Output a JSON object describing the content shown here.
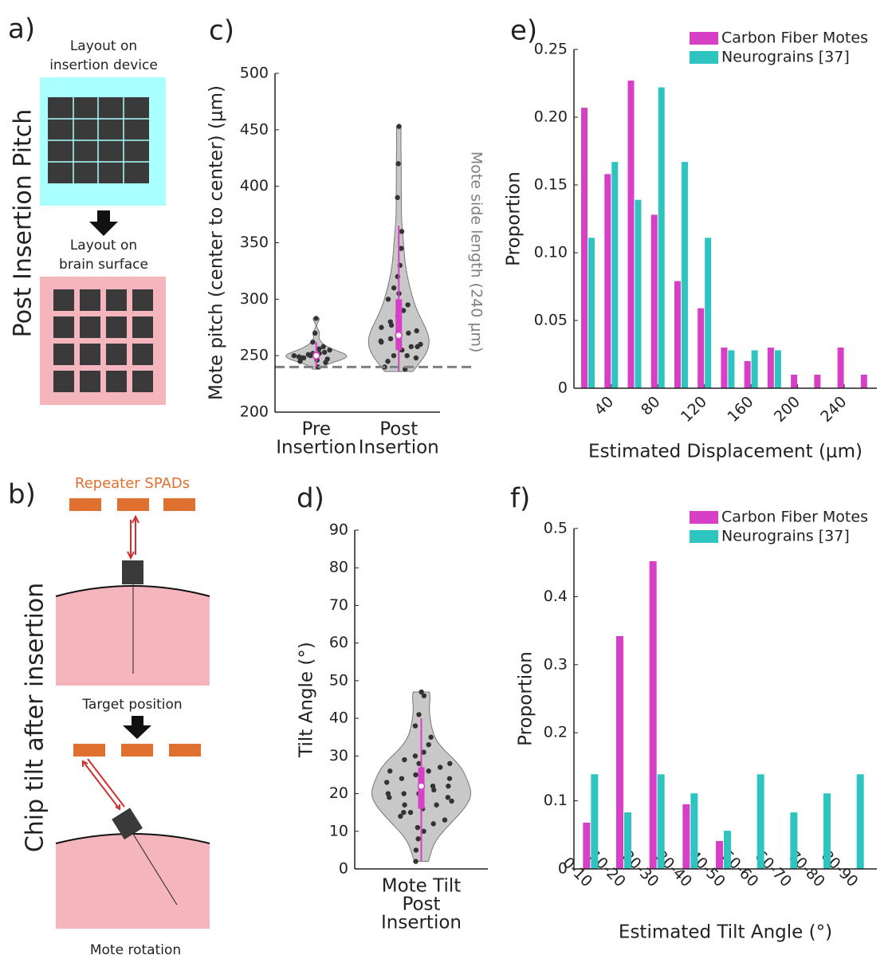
{
  "panels": {
    "a": {
      "label": "a)",
      "title": "Post Insertion Pitch",
      "top_caption": [
        "Layout on",
        "insertion device"
      ],
      "bottom_caption": [
        "Layout on",
        "brain surface"
      ]
    },
    "b": {
      "label": "b)",
      "title": "Chip tilt after insertion",
      "spads": "Repeater SPADs",
      "top_caption": "Target position",
      "bottom_caption": "Mote rotation"
    }
  },
  "chart_data": [
    {
      "type": "violin",
      "panel_label": "c)",
      "ylabel": "Mote pitch (center to center) (μm)",
      "categories": [
        [
          "Pre",
          "Insertion"
        ],
        [
          "Post",
          "Insertion"
        ]
      ],
      "ylim": [
        200,
        500
      ],
      "yticks": [
        200,
        250,
        300,
        350,
        400,
        450,
        500
      ],
      "reference_line": 240,
      "reference_label": "Mote side length (240 μm)",
      "reference_color": "#808080",
      "color": "#c8c8c8",
      "box_color": "#d63fc6",
      "groups": [
        {
          "min": 238,
          "max": 283,
          "q1": 247,
          "median": 250,
          "q3": 253,
          "whiskers": [
            240,
            262
          ],
          "points": [
            245,
            248,
            250,
            252,
            247,
            255,
            249,
            251,
            246,
            253,
            258,
            262,
            270,
            283,
            240,
            244,
            250,
            248,
            252,
            256
          ]
        },
        {
          "min": 236,
          "max": 453,
          "q1": 255,
          "median": 268,
          "q3": 300,
          "whiskers": [
            236,
            365
          ],
          "points": [
            240,
            245,
            250,
            255,
            258,
            260,
            262,
            265,
            268,
            270,
            272,
            275,
            280,
            285,
            290,
            295,
            300,
            310,
            320,
            330,
            345,
            360,
            390,
            420,
            453,
            238,
            248,
            263,
            277,
            305,
            250,
            258
          ]
        }
      ]
    },
    {
      "type": "violin",
      "panel_label": "d)",
      "ylabel": "Tilt Angle (°)",
      "categories": [
        [
          "Mote Tilt",
          "Post",
          "Insertion"
        ]
      ],
      "ylim": [
        0,
        90
      ],
      "yticks": [
        0,
        10,
        20,
        30,
        40,
        50,
        60,
        70,
        80,
        90
      ],
      "color": "#c8c8c8",
      "box_color": "#d63fc6",
      "groups": [
        {
          "min": 2,
          "max": 47,
          "q1": 16,
          "median": 22,
          "q3": 27,
          "whiskers": [
            2,
            40
          ],
          "points": [
            2,
            5,
            8,
            10,
            12,
            13,
            14,
            15,
            16,
            17,
            18,
            19,
            20,
            20,
            21,
            22,
            23,
            24,
            25,
            26,
            27,
            28,
            29,
            30,
            31,
            33,
            35,
            38,
            41,
            47,
            46,
            24,
            20,
            17,
            28,
            22,
            19,
            26,
            15,
            11
          ]
        }
      ]
    },
    {
      "type": "bar",
      "panel_label": "e)",
      "ylabel": "Proportion",
      "xlabel": "Estimated Displacement (μm)",
      "x": [
        20,
        40,
        60,
        80,
        100,
        120,
        140,
        160,
        180,
        200,
        220,
        240,
        260
      ],
      "xlim": [
        8,
        268
      ],
      "xticks": [
        40,
        80,
        120,
        160,
        200,
        240
      ],
      "ylim": [
        0,
        0.25
      ],
      "yticks": [
        0,
        0.05,
        {
          "value": 0.1,
          "label": "0.10"
        },
        0.15,
        {
          "value": 0.2,
          "label": "0.20"
        },
        0.25
      ],
      "series": [
        {
          "name": "Carbon Fiber Motes",
          "color": "#d63fc6",
          "values": [
            0.207,
            0.158,
            0.227,
            0.128,
            0.079,
            0.059,
            0.03,
            0.02,
            0.03,
            0.01,
            0.01,
            0.03,
            0.01
          ]
        },
        {
          "name": "Neurograins [37]",
          "color": "#2ec4c0",
          "values": [
            0.111,
            0.167,
            0.139,
            0.222,
            0.167,
            0.111,
            0.028,
            0.028,
            0.028,
            0,
            0,
            0,
            0
          ]
        }
      ]
    },
    {
      "type": "bar",
      "panel_label": "f)",
      "ylabel": "Proportion",
      "xlabel": "Estimated Tilt Angle (°)",
      "categories": [
        "0-10",
        "10-20",
        "20-30",
        "30-40",
        "40-50",
        "50-60",
        "60-70",
        "70-80",
        "80-90"
      ],
      "ylim": [
        0,
        0.5
      ],
      "yticks": [
        0,
        0.1,
        0.2,
        0.3,
        0.4,
        0.5
      ],
      "series": [
        {
          "name": "Carbon Fiber Motes",
          "color": "#d63fc6",
          "values": [
            0.068,
            0.342,
            0.452,
            0.095,
            0.041,
            0,
            0,
            0,
            0
          ]
        },
        {
          "name": "Neurograins [37]",
          "color": "#2ec4c0",
          "values": [
            0.139,
            0.083,
            0.139,
            0.111,
            0.056,
            0.139,
            0.083,
            0.111,
            0.139
          ]
        }
      ]
    }
  ]
}
